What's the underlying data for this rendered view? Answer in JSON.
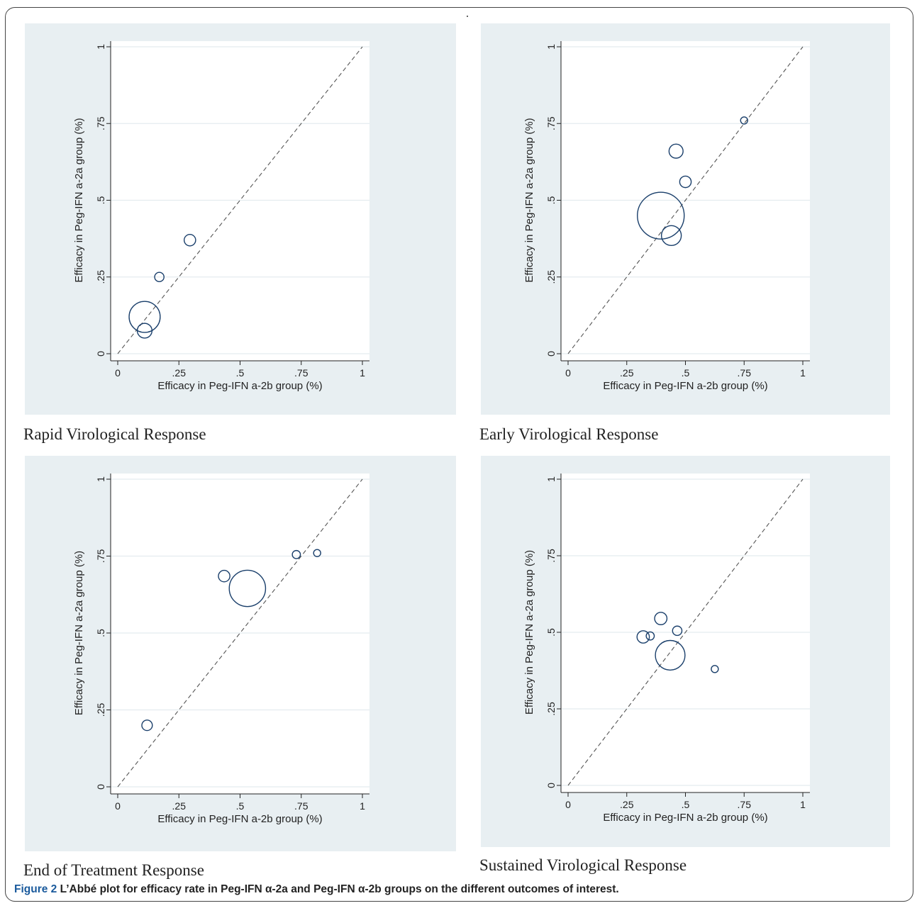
{
  "figure": {
    "label": "Figure 2",
    "caption": "L’Abbé plot for efficacy rate in Peg-IFN α-2a and Peg-IFN α-2b groups on the different outcomes of interest."
  },
  "colors": {
    "panel_bg": "#e8eff2",
    "marker": "#1a3f6b",
    "reference_line": "#555555",
    "grid": "#ffffff"
  },
  "chart_data": [
    {
      "type": "scatter",
      "caption": "Rapid Virological Response",
      "xlabel": "Efficacy in Peg-IFN a-2b group (%)",
      "ylabel": "Efficacy in Peg-IFN a-2a group (%)",
      "xlim": [
        0,
        1
      ],
      "ylim": [
        0,
        1
      ],
      "ticks": [
        0,
        0.25,
        0.5,
        0.75,
        1
      ],
      "tick_labels": [
        "0",
        ".25",
        ".5",
        ".75",
        "1"
      ],
      "grid": true,
      "reference_line": "y = x (dashed)",
      "points": [
        {
          "x": 0.11,
          "y": 0.12,
          "weight": 44
        },
        {
          "x": 0.11,
          "y": 0.075,
          "weight": 10
        },
        {
          "x": 0.17,
          "y": 0.25,
          "weight": 4
        },
        {
          "x": 0.295,
          "y": 0.37,
          "weight": 6
        }
      ]
    },
    {
      "type": "scatter",
      "caption": "Early Virological Response",
      "xlabel": "Efficacy in Peg-IFN a-2b group (%)",
      "ylabel": "Efficacy in Peg-IFN a-2a group (%)",
      "xlim": [
        0,
        1
      ],
      "ylim": [
        0,
        1
      ],
      "ticks": [
        0,
        0.25,
        0.5,
        0.75,
        1
      ],
      "tick_labels": [
        "0",
        ".25",
        ".5",
        ".75",
        "1"
      ],
      "grid": true,
      "reference_line": "y = x (dashed)",
      "points": [
        {
          "x": 0.395,
          "y": 0.45,
          "weight": 100
        },
        {
          "x": 0.44,
          "y": 0.385,
          "weight": 18
        },
        {
          "x": 0.46,
          "y": 0.66,
          "weight": 9
        },
        {
          "x": 0.5,
          "y": 0.56,
          "weight": 6
        },
        {
          "x": 0.75,
          "y": 0.76,
          "weight": 2
        }
      ]
    },
    {
      "type": "scatter",
      "caption": "End of Treatment Response",
      "xlabel": "Efficacy in Peg-IFN a-2b group (%)",
      "ylabel": "Efficacy in Peg-IFN a-2a group (%)",
      "xlim": [
        0,
        1
      ],
      "ylim": [
        0,
        1
      ],
      "ticks": [
        0,
        0.25,
        0.5,
        0.75,
        1
      ],
      "tick_labels": [
        "0",
        ".25",
        ".5",
        ".75",
        "1"
      ],
      "grid": true,
      "reference_line": "y = x (dashed)",
      "points": [
        {
          "x": 0.53,
          "y": 0.645,
          "weight": 60
        },
        {
          "x": 0.435,
          "y": 0.685,
          "weight": 6
        },
        {
          "x": 0.12,
          "y": 0.2,
          "weight": 5
        },
        {
          "x": 0.73,
          "y": 0.755,
          "weight": 3
        },
        {
          "x": 0.815,
          "y": 0.76,
          "weight": 1
        }
      ]
    },
    {
      "type": "scatter",
      "caption": "Sustained Virological Response",
      "xlabel": "Efficacy in Peg-IFN a-2b group (%)",
      "ylabel": "Efficacy in Peg-IFN a-2a group (%)",
      "xlim": [
        0,
        1
      ],
      "ylim": [
        0,
        1
      ],
      "ticks": [
        0,
        0.25,
        0.5,
        0.75,
        1
      ],
      "tick_labels": [
        "0",
        ".25",
        ".5",
        ".75",
        "1"
      ],
      "grid": true,
      "reference_line": "y = x (dashed)",
      "points": [
        {
          "x": 0.435,
          "y": 0.425,
          "weight": 40
        },
        {
          "x": 0.395,
          "y": 0.545,
          "weight": 7
        },
        {
          "x": 0.32,
          "y": 0.485,
          "weight": 7
        },
        {
          "x": 0.465,
          "y": 0.505,
          "weight": 4
        },
        {
          "x": 0.35,
          "y": 0.488,
          "weight": 3
        },
        {
          "x": 0.625,
          "y": 0.38,
          "weight": 1.5
        }
      ]
    }
  ]
}
